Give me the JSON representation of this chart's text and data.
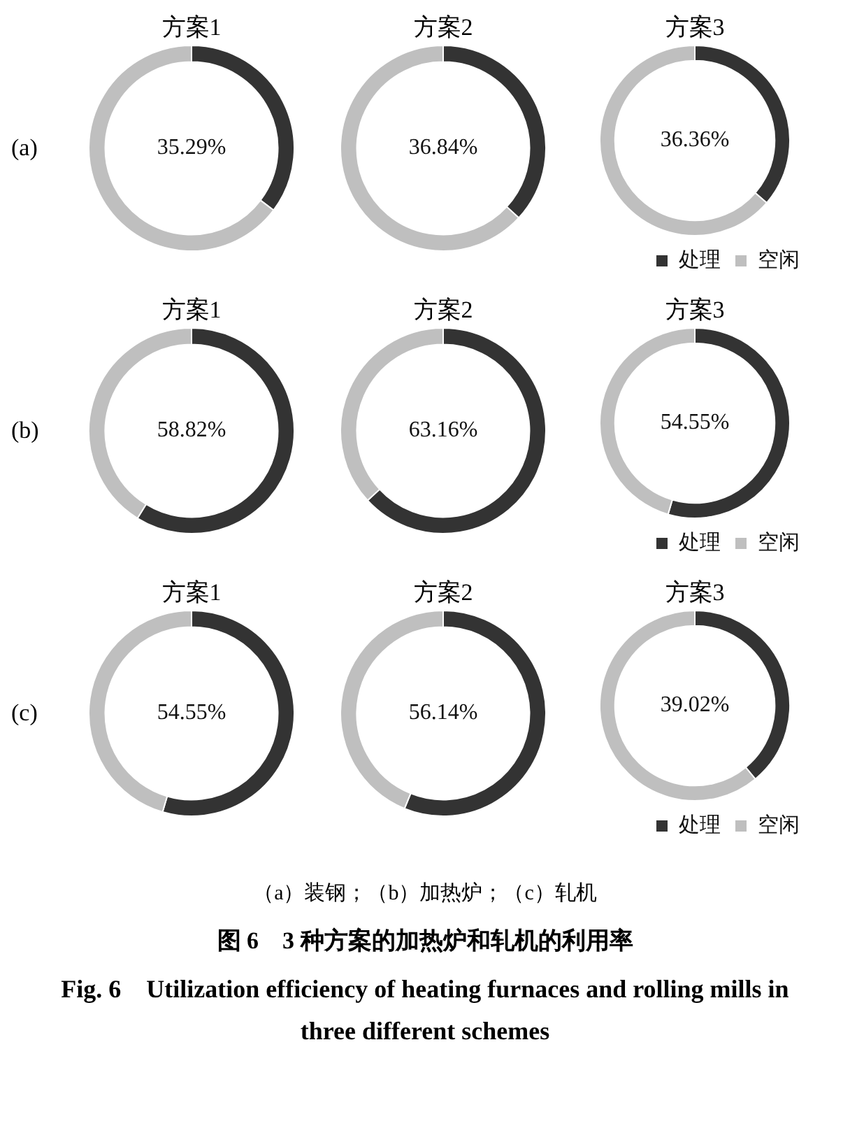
{
  "chart_data": [
    {
      "type": "donut",
      "title": "方案1",
      "ylabel": "(a)",
      "categories": [
        null,
        null
      ],
      "values": [
        35.29,
        64.71
      ],
      "colors": [
        "#333333",
        "#bfbfbf"
      ],
      "value_labels": [
        "35.29%",
        null
      ]
    },
    {
      "type": "donut",
      "title": "方案2",
      "categories": [
        null,
        null
      ],
      "values": [
        36.84,
        63.16
      ],
      "colors": [
        "#333333",
        "#bfbfbf"
      ],
      "value_labels": [
        "36.84%",
        null
      ]
    },
    {
      "type": "donut",
      "title": "方案3",
      "categories": [
        "处理",
        "空闲"
      ],
      "values": [
        36.36,
        63.64
      ],
      "colors": [
        "#333333",
        "#bfbfbf"
      ],
      "value_labels": [
        "36.36%",
        null
      ],
      "legend": "bottom right"
    },
    {
      "type": "donut",
      "title": "方案1",
      "ylabel": "(b)",
      "categories": [
        null,
        null
      ],
      "values": [
        58.82,
        41.18
      ],
      "colors": [
        "#333333",
        "#bfbfbf"
      ],
      "value_labels": [
        "58.82%",
        null
      ]
    },
    {
      "type": "donut",
      "title": "方案2",
      "categories": [
        null,
        null
      ],
      "values": [
        63.16,
        36.84
      ],
      "colors": [
        "#333333",
        "#bfbfbf"
      ],
      "value_labels": [
        "63.16%",
        null
      ]
    },
    {
      "type": "donut",
      "title": "方案3",
      "categories": [
        "处理",
        "空闲"
      ],
      "values": [
        54.55,
        45.45
      ],
      "colors": [
        "#333333",
        "#bfbfbf"
      ],
      "value_labels": [
        "54.55%",
        null
      ],
      "legend": "bottom right"
    },
    {
      "type": "donut",
      "title": "方案1",
      "ylabel": "(c)",
      "categories": [
        null,
        null
      ],
      "values": [
        54.55,
        45.45
      ],
      "colors": [
        "#333333",
        "#bfbfbf"
      ],
      "value_labels": [
        "54.55%",
        null
      ]
    },
    {
      "type": "donut",
      "title": "方案2",
      "categories": [
        null,
        null
      ],
      "values": [
        56.14,
        43.86
      ],
      "colors": [
        "#333333",
        "#bfbfbf"
      ],
      "value_labels": [
        "56.14%",
        null
      ]
    },
    {
      "type": "donut",
      "title": "方案3",
      "categories": [
        "处理",
        "空闲"
      ],
      "values": [
        39.02,
        60.98
      ],
      "colors": [
        "#333333",
        "#bfbfbf"
      ],
      "value_labels": [
        "39.02%",
        null
      ],
      "legend": "bottom right"
    },
    {
      "type": "other",
      "annotations": [
        "（a）装钢；（b）加热炉；（c）轧机",
        "图 6　3 种方案的加热炉和轧机的利用率",
        "Fig. 6　Utilization efficiency of heating furnaces and rolling mills in three different schemes"
      ]
    }
  ]
}
